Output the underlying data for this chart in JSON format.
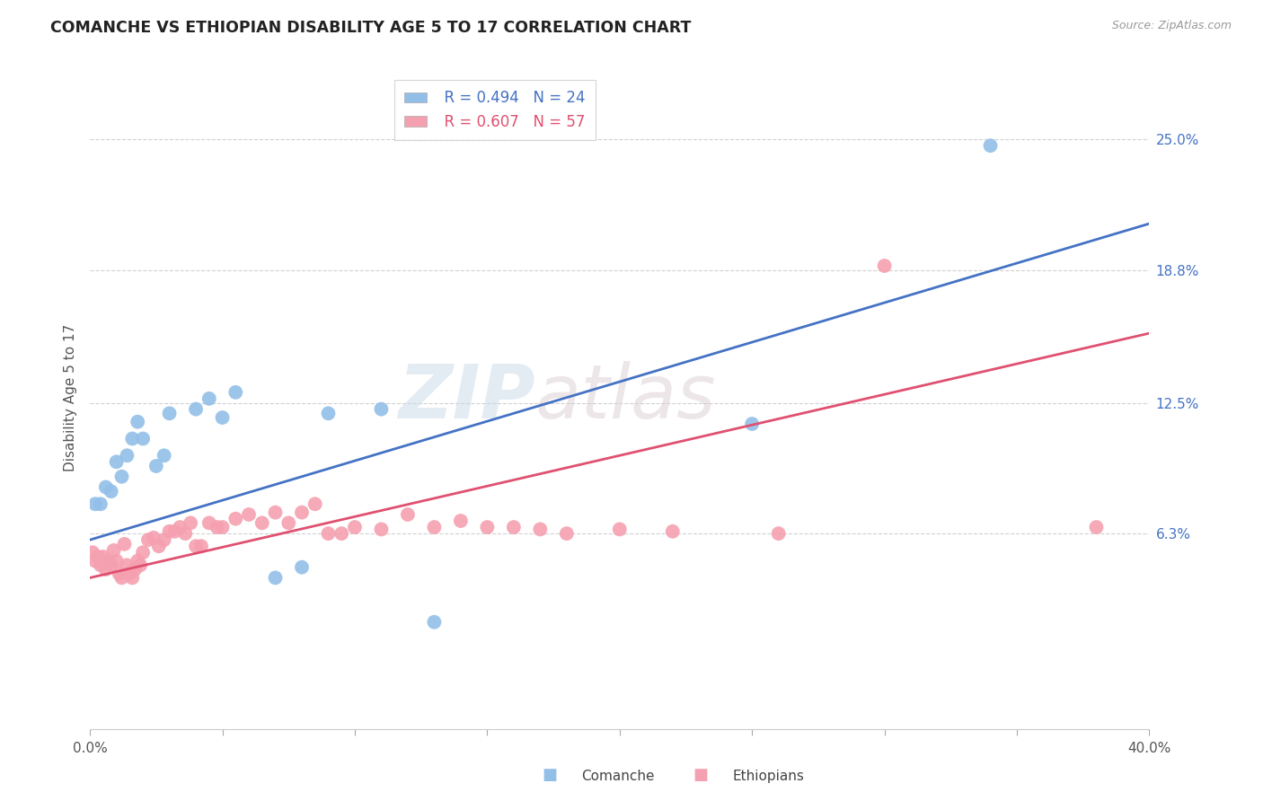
{
  "title": "COMANCHE VS ETHIOPIAN DISABILITY AGE 5 TO 17 CORRELATION CHART",
  "source": "Source: ZipAtlas.com",
  "ylabel": "Disability Age 5 to 17",
  "xlim": [
    0.0,
    0.4
  ],
  "ylim": [
    -0.03,
    0.285
  ],
  "yticks": [
    0.063,
    0.125,
    0.188,
    0.25
  ],
  "ytick_labels": [
    "6.3%",
    "12.5%",
    "18.8%",
    "25.0%"
  ],
  "comanche_R": 0.494,
  "comanche_N": 24,
  "ethiopian_R": 0.607,
  "ethiopian_N": 57,
  "comanche_color": "#92bfe8",
  "ethiopian_color": "#f5a0b0",
  "comanche_line_color": "#4472c4",
  "ethiopian_line_color": "#e05070",
  "comanche_points": [
    [
      0.002,
      0.077
    ],
    [
      0.004,
      0.077
    ],
    [
      0.006,
      0.085
    ],
    [
      0.008,
      0.083
    ],
    [
      0.01,
      0.097
    ],
    [
      0.012,
      0.09
    ],
    [
      0.014,
      0.1
    ],
    [
      0.016,
      0.108
    ],
    [
      0.018,
      0.116
    ],
    [
      0.02,
      0.108
    ],
    [
      0.025,
      0.095
    ],
    [
      0.028,
      0.1
    ],
    [
      0.03,
      0.12
    ],
    [
      0.04,
      0.122
    ],
    [
      0.045,
      0.127
    ],
    [
      0.05,
      0.118
    ],
    [
      0.055,
      0.13
    ],
    [
      0.07,
      0.042
    ],
    [
      0.08,
      0.047
    ],
    [
      0.09,
      0.12
    ],
    [
      0.11,
      0.122
    ],
    [
      0.13,
      0.021
    ],
    [
      0.25,
      0.115
    ],
    [
      0.34,
      0.247
    ]
  ],
  "ethiopian_points": [
    [
      0.001,
      0.054
    ],
    [
      0.002,
      0.05
    ],
    [
      0.003,
      0.052
    ],
    [
      0.004,
      0.048
    ],
    [
      0.005,
      0.052
    ],
    [
      0.006,
      0.046
    ],
    [
      0.007,
      0.05
    ],
    [
      0.008,
      0.048
    ],
    [
      0.009,
      0.055
    ],
    [
      0.01,
      0.05
    ],
    [
      0.011,
      0.044
    ],
    [
      0.012,
      0.042
    ],
    [
      0.013,
      0.058
    ],
    [
      0.014,
      0.048
    ],
    [
      0.015,
      0.044
    ],
    [
      0.016,
      0.042
    ],
    [
      0.017,
      0.046
    ],
    [
      0.018,
      0.05
    ],
    [
      0.019,
      0.048
    ],
    [
      0.02,
      0.054
    ],
    [
      0.022,
      0.06
    ],
    [
      0.024,
      0.061
    ],
    [
      0.026,
      0.057
    ],
    [
      0.028,
      0.06
    ],
    [
      0.03,
      0.064
    ],
    [
      0.032,
      0.064
    ],
    [
      0.034,
      0.066
    ],
    [
      0.036,
      0.063
    ],
    [
      0.038,
      0.068
    ],
    [
      0.04,
      0.057
    ],
    [
      0.042,
      0.057
    ],
    [
      0.045,
      0.068
    ],
    [
      0.048,
      0.066
    ],
    [
      0.05,
      0.066
    ],
    [
      0.055,
      0.07
    ],
    [
      0.06,
      0.072
    ],
    [
      0.065,
      0.068
    ],
    [
      0.07,
      0.073
    ],
    [
      0.075,
      0.068
    ],
    [
      0.08,
      0.073
    ],
    [
      0.085,
      0.077
    ],
    [
      0.09,
      0.063
    ],
    [
      0.095,
      0.063
    ],
    [
      0.1,
      0.066
    ],
    [
      0.11,
      0.065
    ],
    [
      0.12,
      0.072
    ],
    [
      0.13,
      0.066
    ],
    [
      0.14,
      0.069
    ],
    [
      0.15,
      0.066
    ],
    [
      0.16,
      0.066
    ],
    [
      0.17,
      0.065
    ],
    [
      0.18,
      0.063
    ],
    [
      0.2,
      0.065
    ],
    [
      0.22,
      0.064
    ],
    [
      0.26,
      0.063
    ],
    [
      0.3,
      0.19
    ],
    [
      0.38,
      0.066
    ]
  ],
  "comanche_trend_x": [
    0.0,
    0.4
  ],
  "comanche_trend_y": [
    0.06,
    0.21
  ],
  "ethiopian_trend_x": [
    0.0,
    0.4
  ],
  "ethiopian_trend_y": [
    0.042,
    0.158
  ],
  "watermark_zip": "ZIP",
  "watermark_atlas": "atlas",
  "background_color": "#ffffff",
  "grid_color": "#d0d0d0",
  "grid_style": "--"
}
